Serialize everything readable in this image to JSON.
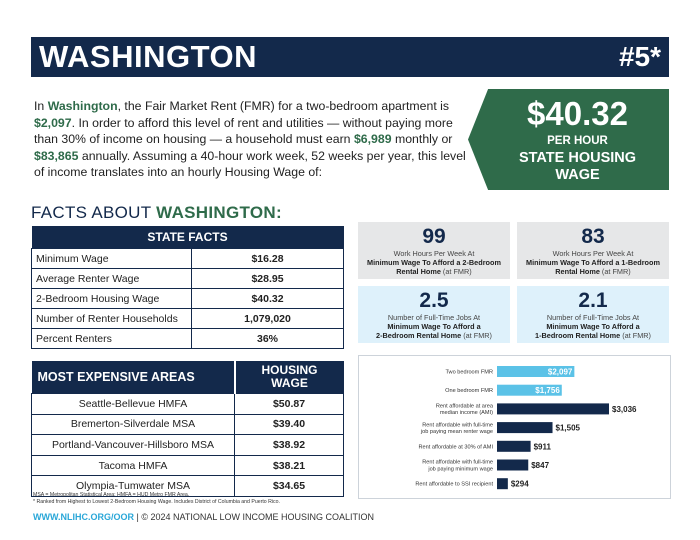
{
  "header": {
    "state": "WASHINGTON",
    "rank": "#5*"
  },
  "intro": {
    "p1": "In ",
    "state": "Washington",
    "p2": ", the Fair Market Rent (FMR) for a two-bedroom apartment is ",
    "fmr": "$2,097",
    "p3": ". In order to afford this level of rent and utilities — without paying more than 30% of income on housing — a household must earn ",
    "monthly": "$6,989",
    "p4": " monthly or ",
    "annual": "$83,865",
    "p5": " annually. Assuming a 40-hour work week, 52 weeks per year, this level of income translates into an hourly Housing Wage of:"
  },
  "housing_wage_badge": {
    "amount": "$40.32",
    "per": "PER HOUR",
    "line1": "STATE HOUSING",
    "line2": "WAGE"
  },
  "facts_heading": {
    "prefix": "FACTS ABOUT ",
    "state": "WASHINGTON:"
  },
  "state_facts": {
    "title": "STATE FACTS",
    "rows": [
      {
        "label": "Minimum Wage",
        "value": "$16.28"
      },
      {
        "label": "Average Renter Wage",
        "value": "$28.95"
      },
      {
        "label": "2-Bedroom Housing Wage",
        "value": "$40.32"
      },
      {
        "label": "Number of Renter Households",
        "value": "1,079,020"
      },
      {
        "label": "Percent Renters",
        "value": "36%"
      }
    ]
  },
  "expensive_areas": {
    "col_name": "MOST EXPENSIVE AREAS",
    "col_wage_1": "HOUSING",
    "col_wage_2": "WAGE",
    "rows": [
      {
        "name": "Seattle-Bellevue HMFA",
        "wage": "$50.87"
      },
      {
        "name": "Bremerton-Silverdale MSA",
        "wage": "$39.40"
      },
      {
        "name": "Portland-Vancouver-Hillsboro MSA",
        "wage": "$38.92"
      },
      {
        "name": "Tacoma HMFA",
        "wage": "$38.21"
      },
      {
        "name": "Olympia-Tumwater MSA",
        "wage": "$34.65"
      }
    ]
  },
  "stats": [
    {
      "num": "99",
      "l1": "Work Hours Per Week At",
      "l2": "Minimum Wage To Afford a 2-Bedroom",
      "l3": "Rental Home",
      "l3b": " (at FMR)"
    },
    {
      "num": "83",
      "l1": "Work Hours Per Week At",
      "l2": "Minimum Wage To Afford a 1-Bedroom",
      "l3": "Rental Home",
      "l3b": " (at FMR)"
    },
    {
      "num": "2.5",
      "l1": "Number of Full-Time Jobs At",
      "l2": "Minimum Wage To Afford a",
      "l3": "2-Bedroom Rental Home",
      "l3b": " (at FMR)"
    },
    {
      "num": "2.1",
      "l1": "Number of Full-Time Jobs At",
      "l2": "Minimum Wage To Afford a",
      "l3": "1-Bedroom Rental Home",
      "l3b": " (at FMR)"
    }
  ],
  "chart_data": {
    "type": "bar",
    "orientation": "horizontal",
    "title": "",
    "xlabel": "",
    "ylabel": "",
    "grid": false,
    "legend": "none",
    "categories": [
      "Two bedroom FMR",
      "One bedroom FMR",
      "Rent affordable at area median income (AMI)",
      "Rent affordable with full-time job paying mean renter wage",
      "Rent affordable at 30% of AMI",
      "Rent affordable with full-time job paying minimum wage",
      "Rent affordable to SSI recipient"
    ],
    "category_lines": [
      [
        "Two bedroom FMR"
      ],
      [
        "One bedroom FMR"
      ],
      [
        "Rent affordable at area",
        "median income (AMI)"
      ],
      [
        "Rent affordable with full-time",
        "job paying mean renter wage"
      ],
      [
        "Rent affordable at 30% of AMI"
      ],
      [
        "Rent affordable with full-time",
        "job paying minimum wage"
      ],
      [
        "Rent affordable to SSI recipient"
      ]
    ],
    "values": [
      2097,
      1756,
      3036,
      1505,
      911,
      847,
      294
    ],
    "value_labels": [
      "$2,097",
      "$1,756",
      "$3,036",
      "$1,505",
      "$911",
      "$847",
      "$294"
    ],
    "bar_colors": [
      "#5bc2e7",
      "#5bc2e7",
      "#13294b",
      "#13294b",
      "#13294b",
      "#13294b",
      "#13294b"
    ],
    "xlim": [
      0,
      3036
    ]
  },
  "footnote": {
    "line1": "MSA = Metropolitan Statistical Area; HMFA = HUD Metro FMR Area.",
    "line2": "* Ranked from Highest to Lowest 2-Bedroom Housing Wage. Includes District of Columbia and Puerto Rico."
  },
  "footer": {
    "link": "WWW.NLIHC.ORG/OOR",
    "sep": " | ",
    "text": "© 2024 NATIONAL LOW INCOME HOUSING COALITION"
  },
  "colors": {
    "navy": "#13294b",
    "green": "#2f6b4a",
    "light_blue": "#5bc2e7",
    "gray_box": "#e6e7e8",
    "blue_box": "#def1fb"
  }
}
